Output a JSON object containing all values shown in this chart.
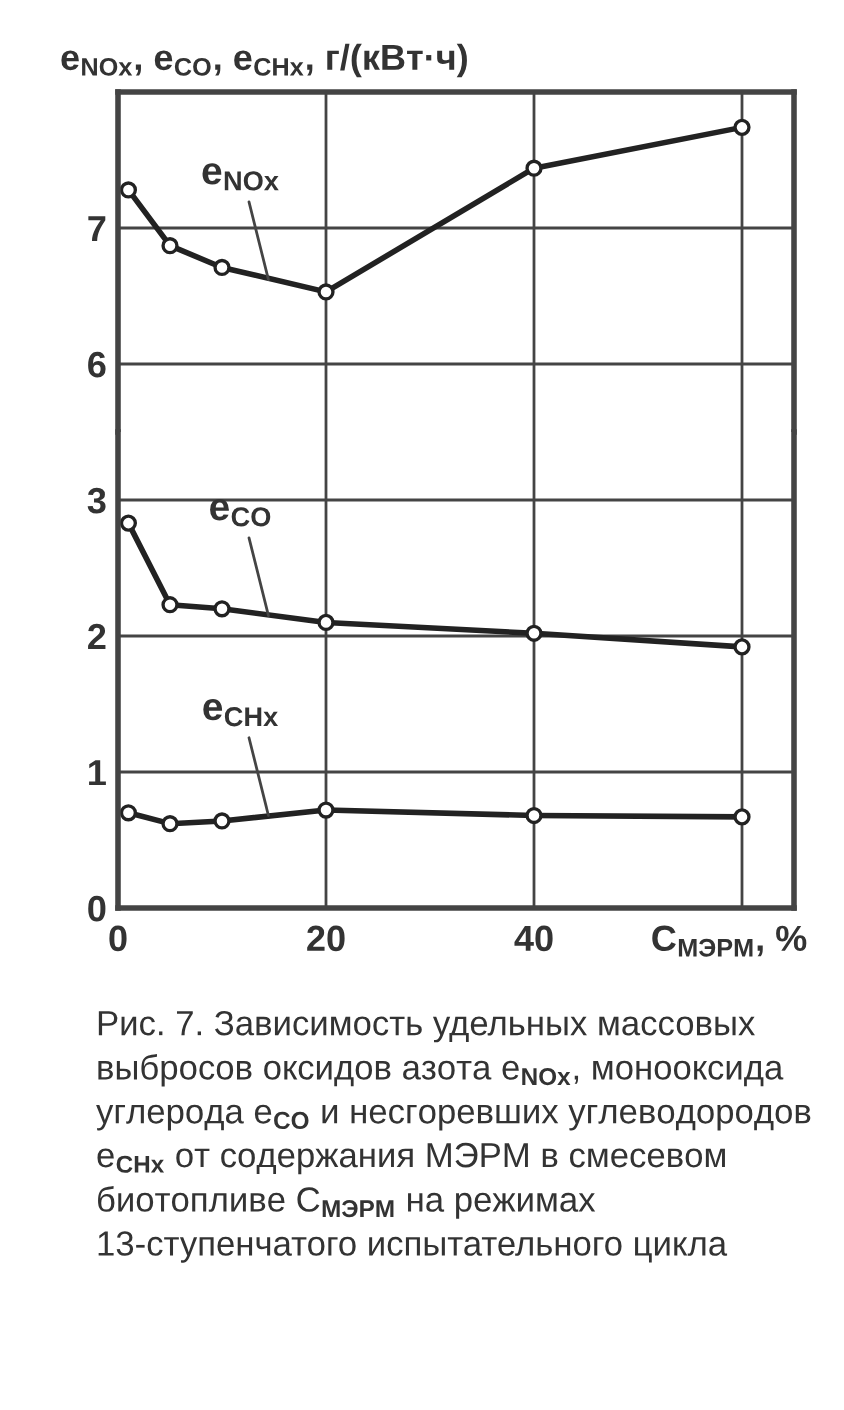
{
  "chart_data": [
    {
      "type": "line",
      "ylabel": "e$_{NOx}$, e$_{CO}$, e$_{CHx}$, г/(кВт·ч)",
      "x": [
        1,
        5,
        10,
        20,
        40,
        60
      ],
      "xlim": [
        0,
        65
      ],
      "xticks": [
        0,
        20,
        40,
        {
          "value": 60,
          "label": null
        }
      ],
      "ylim": [
        5.5,
        8
      ],
      "yticks": [
        6,
        7
      ],
      "tick_labels": "y",
      "grid": true,
      "marker": "circle",
      "line_style": "solid",
      "series": [
        {
          "name": "e$_{NOx}$",
          "color": "#222222",
          "values": [
            7.28,
            6.87,
            6.71,
            6.53,
            7.44,
            7.74
          ]
        }
      ]
    },
    {
      "type": "line",
      "xlabel": "C$_{МЭРМ}$, %",
      "x": [
        1,
        5,
        10,
        20,
        40,
        60
      ],
      "xlim": [
        0,
        65
      ],
      "xticks": [
        0,
        20,
        40,
        {
          "value": 60,
          "label": null
        }
      ],
      "ylim": [
        0,
        3.5
      ],
      "yticks": [
        0,
        1,
        2,
        3
      ],
      "grid": true,
      "marker": "circle",
      "line_style": "solid",
      "series": [
        {
          "name": "e$_{CO}$",
          "color": "#222222",
          "values": [
            2.83,
            2.23,
            2.2,
            2.1,
            2.02,
            1.92
          ]
        },
        {
          "name": "e$_{CHx}$",
          "color": "#222222",
          "values": [
            0.7,
            0.62,
            0.64,
            0.72,
            0.68,
            0.67
          ]
        }
      ],
      "annotations": [
        "Рис. 7. Зависимость удельных массовых выбросов оксидов азота e$_{NOx}$, монооксида углерода e$_{CO}$ и несгоревших углеводородов e$_{CHx}$ от содержания МЭРМ в смесевом биотопливе C$_{МЭРМ}$ на режимах 13-ступенчатого испытательного цикла"
      ]
    }
  ]
}
